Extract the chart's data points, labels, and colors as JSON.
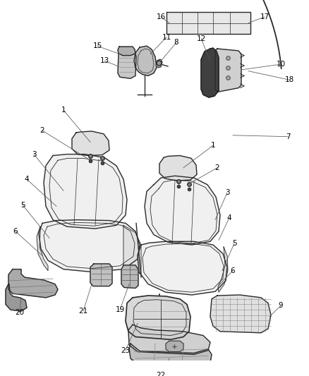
{
  "bg_color": "#ffffff",
  "line_color": "#2a2a2a",
  "label_color": "#000000",
  "figsize": [
    4.38,
    5.33
  ],
  "dpi": 100,
  "seat_fill": "#f0f0f0",
  "seat_fill2": "#e0e0e0",
  "dark_fill": "#555555",
  "mid_fill": "#c8c8c8",
  "light_fill": "#ebebeb"
}
